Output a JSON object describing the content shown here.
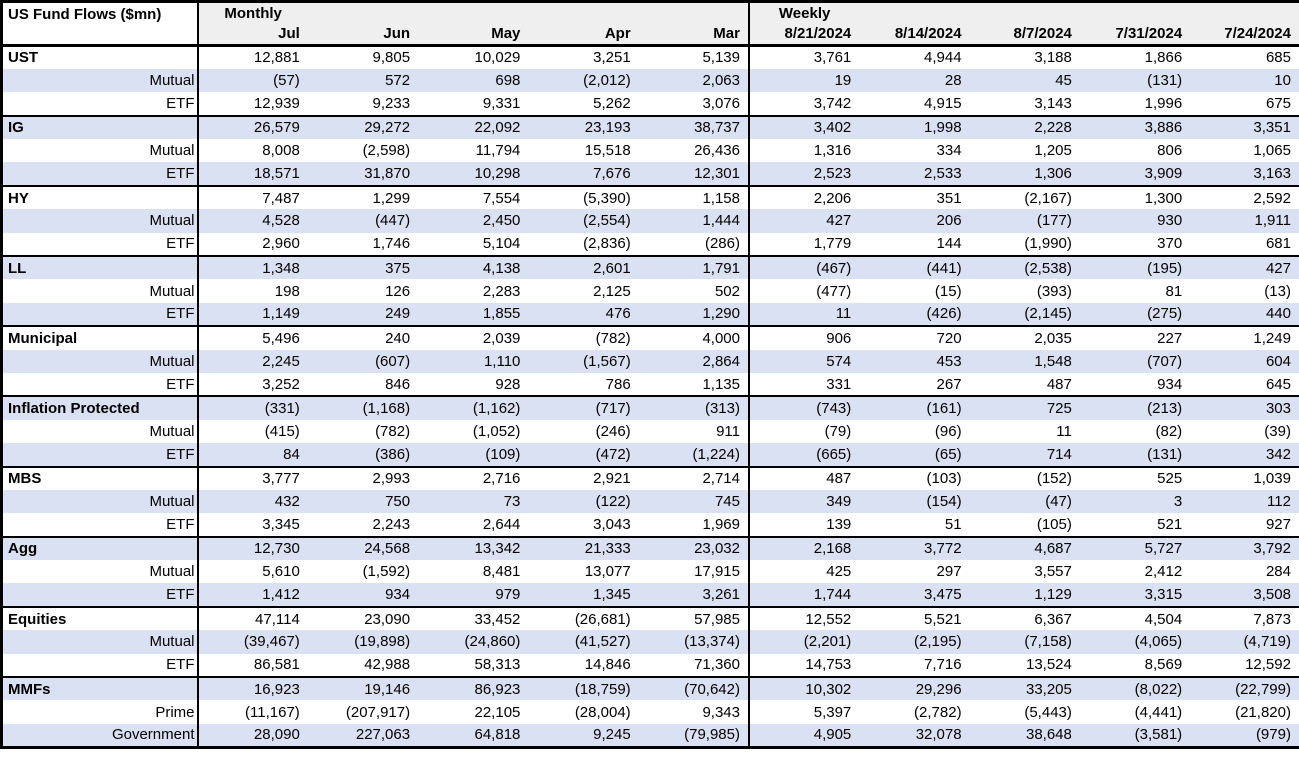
{
  "colors": {
    "stripe": "#d9e1f2",
    "header_bg": "#efefef",
    "border": "#000000",
    "row_bg": "#ffffff",
    "text": "#000000"
  },
  "chart_data": {
    "type": "table",
    "title": "US Fund Flows ($mn)",
    "unit": "$mn",
    "negative_format": "parentheses",
    "layout": {
      "stripe_pattern": "alternating-rows",
      "group_separator": "thick-black-line"
    },
    "sections": [
      {
        "label": "Monthly",
        "columns": [
          "Jul",
          "Jun",
          "May",
          "Apr",
          "Mar"
        ]
      },
      {
        "label": "Weekly",
        "columns": [
          "8/21/2024",
          "8/14/2024",
          "8/7/2024",
          "7/31/2024",
          "7/24/2024"
        ]
      }
    ],
    "groups": [
      {
        "category": "UST",
        "rows": [
          {
            "label": "UST",
            "kind": "category",
            "monthly": [
              12881,
              9805,
              10029,
              3251,
              5139
            ],
            "weekly": [
              3761,
              4944,
              3188,
              1866,
              685
            ]
          },
          {
            "label": "Mutual",
            "kind": "sub",
            "monthly": [
              -57,
              572,
              698,
              -2012,
              2063
            ],
            "weekly": [
              19,
              28,
              45,
              -131,
              10
            ]
          },
          {
            "label": "ETF",
            "kind": "sub",
            "monthly": [
              12939,
              9233,
              9331,
              5262,
              3076
            ],
            "weekly": [
              3742,
              4915,
              3143,
              1996,
              675
            ]
          }
        ]
      },
      {
        "category": "IG",
        "rows": [
          {
            "label": "IG",
            "kind": "category",
            "monthly": [
              26579,
              29272,
              22092,
              23193,
              38737
            ],
            "weekly": [
              3402,
              1998,
              2228,
              3886,
              3351
            ]
          },
          {
            "label": "Mutual",
            "kind": "sub",
            "monthly": [
              8008,
              -2598,
              11794,
              15518,
              26436
            ],
            "weekly": [
              1316,
              334,
              1205,
              806,
              1065
            ]
          },
          {
            "label": "ETF",
            "kind": "sub",
            "monthly": [
              18571,
              31870,
              10298,
              7676,
              12301
            ],
            "weekly": [
              2523,
              2533,
              1306,
              3909,
              3163
            ]
          }
        ]
      },
      {
        "category": "HY",
        "rows": [
          {
            "label": "HY",
            "kind": "category",
            "monthly": [
              7487,
              1299,
              7554,
              -5390,
              1158
            ],
            "weekly": [
              2206,
              351,
              -2167,
              1300,
              2592
            ]
          },
          {
            "label": "Mutual",
            "kind": "sub",
            "monthly": [
              4528,
              -447,
              2450,
              -2554,
              1444
            ],
            "weekly": [
              427,
              206,
              -177,
              930,
              1911
            ]
          },
          {
            "label": "ETF",
            "kind": "sub",
            "monthly": [
              2960,
              1746,
              5104,
              -2836,
              -286
            ],
            "weekly": [
              1779,
              144,
              -1990,
              370,
              681
            ]
          }
        ]
      },
      {
        "category": "LL",
        "rows": [
          {
            "label": "LL",
            "kind": "category",
            "monthly": [
              1348,
              375,
              4138,
              2601,
              1791
            ],
            "weekly": [
              -467,
              -441,
              -2538,
              -195,
              427
            ]
          },
          {
            "label": "Mutual",
            "kind": "sub",
            "monthly": [
              198,
              126,
              2283,
              2125,
              502
            ],
            "weekly": [
              -477,
              -15,
              -393,
              81,
              -13
            ]
          },
          {
            "label": "ETF",
            "kind": "sub",
            "monthly": [
              1149,
              249,
              1855,
              476,
              1290
            ],
            "weekly": [
              11,
              -426,
              -2145,
              -275,
              440
            ]
          }
        ]
      },
      {
        "category": "Municipal",
        "rows": [
          {
            "label": "Municipal",
            "kind": "category",
            "monthly": [
              5496,
              240,
              2039,
              -782,
              4000
            ],
            "weekly": [
              906,
              720,
              2035,
              227,
              1249
            ]
          },
          {
            "label": "Mutual",
            "kind": "sub",
            "monthly": [
              2245,
              -607,
              1110,
              -1567,
              2864
            ],
            "weekly": [
              574,
              453,
              1548,
              -707,
              604
            ]
          },
          {
            "label": "ETF",
            "kind": "sub",
            "monthly": [
              3252,
              846,
              928,
              786,
              1135
            ],
            "weekly": [
              331,
              267,
              487,
              934,
              645
            ]
          }
        ]
      },
      {
        "category": "Inflation Protected",
        "rows": [
          {
            "label": "Inflation Protected",
            "kind": "category",
            "monthly": [
              -331,
              -1168,
              -1162,
              -717,
              -313
            ],
            "weekly": [
              -743,
              -161,
              725,
              -213,
              303
            ]
          },
          {
            "label": "Mutual",
            "kind": "sub",
            "monthly": [
              -415,
              -782,
              -1052,
              -246,
              911
            ],
            "weekly": [
              -79,
              -96,
              11,
              -82,
              -39
            ]
          },
          {
            "label": "ETF",
            "kind": "sub",
            "monthly": [
              84,
              -386,
              -109,
              -472,
              -1224
            ],
            "weekly": [
              -665,
              -65,
              714,
              -131,
              342
            ]
          }
        ]
      },
      {
        "category": "MBS",
        "rows": [
          {
            "label": "MBS",
            "kind": "category",
            "monthly": [
              3777,
              2993,
              2716,
              2921,
              2714
            ],
            "weekly": [
              487,
              -103,
              -152,
              525,
              1039
            ]
          },
          {
            "label": "Mutual",
            "kind": "sub",
            "monthly": [
              432,
              750,
              73,
              -122,
              745
            ],
            "weekly": [
              349,
              -154,
              -47,
              3,
              112
            ]
          },
          {
            "label": "ETF",
            "kind": "sub",
            "monthly": [
              3345,
              2243,
              2644,
              3043,
              1969
            ],
            "weekly": [
              139,
              51,
              -105,
              521,
              927
            ]
          }
        ]
      },
      {
        "category": "Agg",
        "rows": [
          {
            "label": "Agg",
            "kind": "category",
            "monthly": [
              12730,
              24568,
              13342,
              21333,
              23032
            ],
            "weekly": [
              2168,
              3772,
              4687,
              5727,
              3792
            ]
          },
          {
            "label": "Mutual",
            "kind": "sub",
            "monthly": [
              5610,
              -1592,
              8481,
              13077,
              17915
            ],
            "weekly": [
              425,
              297,
              3557,
              2412,
              284
            ]
          },
          {
            "label": "ETF",
            "kind": "sub",
            "monthly": [
              1412,
              934,
              979,
              1345,
              3261
            ],
            "weekly": [
              1744,
              3475,
              1129,
              3315,
              3508
            ]
          }
        ]
      },
      {
        "category": "Equities",
        "rows": [
          {
            "label": "Equities",
            "kind": "category",
            "monthly": [
              47114,
              23090,
              33452,
              -26681,
              57985
            ],
            "weekly": [
              12552,
              5521,
              6367,
              4504,
              7873
            ]
          },
          {
            "label": "Mutual",
            "kind": "sub",
            "monthly": [
              -39467,
              -19898,
              -24860,
              -41527,
              -13374
            ],
            "weekly": [
              -2201,
              -2195,
              -7158,
              -4065,
              -4719
            ]
          },
          {
            "label": "ETF",
            "kind": "sub",
            "monthly": [
              86581,
              42988,
              58313,
              14846,
              71360
            ],
            "weekly": [
              14753,
              7716,
              13524,
              8569,
              12592
            ]
          }
        ]
      },
      {
        "category": "MMFs",
        "rows": [
          {
            "label": "MMFs",
            "kind": "category",
            "monthly": [
              16923,
              19146,
              86923,
              -18759,
              -70642
            ],
            "weekly": [
              10302,
              29296,
              33205,
              -8022,
              -22799
            ]
          },
          {
            "label": "Prime",
            "kind": "sub",
            "monthly": [
              -11167,
              -207917,
              22105,
              -28004,
              9343
            ],
            "weekly": [
              5397,
              -2782,
              -5443,
              -4441,
              -21820
            ]
          },
          {
            "label": "Government",
            "kind": "sub",
            "monthly": [
              28090,
              227063,
              64818,
              9245,
              -79985
            ],
            "weekly": [
              4905,
              32078,
              38648,
              -3581,
              -979
            ]
          }
        ]
      }
    ]
  }
}
